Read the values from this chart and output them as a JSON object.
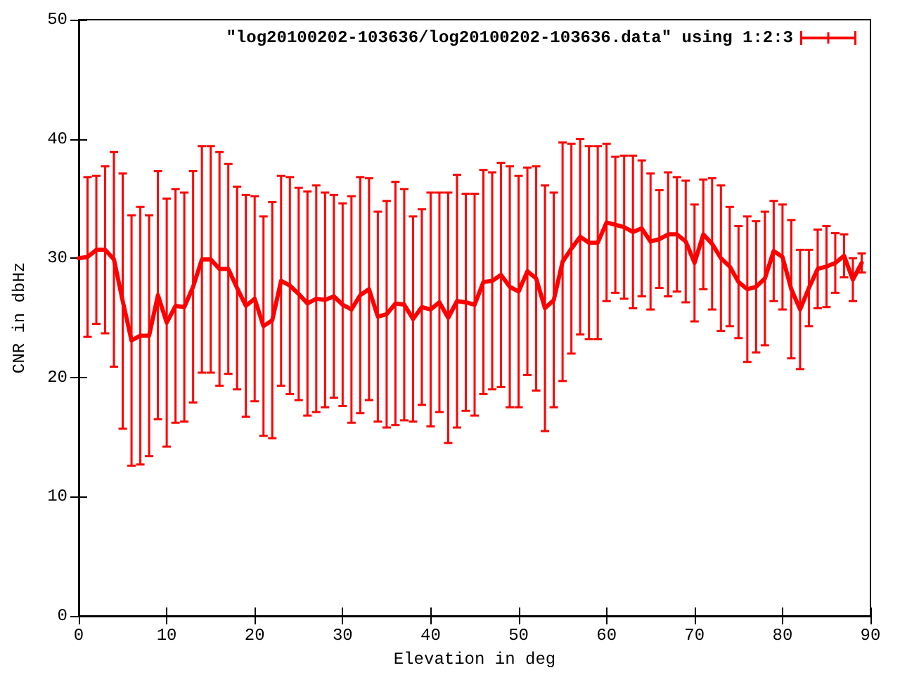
{
  "chart_data": {
    "type": "line",
    "xlabel": "Elevation in deg",
    "ylabel": "CNR in dbHz",
    "xlim": [
      0,
      90
    ],
    "xticks": [
      0,
      10,
      20,
      30,
      40,
      50,
      60,
      70,
      80,
      90
    ],
    "ylim": [
      0,
      50
    ],
    "yticks": [
      0,
      10,
      20,
      30,
      40,
      50
    ],
    "grid": false,
    "legend": "top right",
    "marker": "none",
    "line_style": "solid",
    "series": [
      {
        "name": "\"log20100202-103636/log20100202-103636.data\" using 1:2:3",
        "color": "#ff0000",
        "x": [
          0,
          1,
          2,
          3,
          4,
          5,
          6,
          7,
          8,
          9,
          10,
          11,
          12,
          13,
          14,
          15,
          16,
          17,
          18,
          19,
          20,
          21,
          22,
          23,
          24,
          25,
          26,
          27,
          28,
          29,
          30,
          31,
          32,
          33,
          34,
          35,
          36,
          37,
          38,
          39,
          40,
          41,
          42,
          43,
          44,
          45,
          46,
          47,
          48,
          49,
          50,
          51,
          52,
          53,
          54,
          55,
          56,
          57,
          58,
          59,
          60,
          61,
          62,
          63,
          64,
          65,
          66,
          67,
          68,
          69,
          70,
          71,
          72,
          73,
          74,
          75,
          76,
          77,
          78,
          79,
          80,
          81,
          82,
          83,
          84,
          85,
          86,
          87,
          88,
          89
        ],
        "values": [
          30.0,
          30.1,
          30.7,
          30.7,
          29.9,
          26.4,
          23.1,
          23.5,
          23.5,
          26.9,
          24.6,
          26.0,
          25.9,
          27.6,
          29.9,
          29.9,
          29.1,
          29.1,
          27.5,
          26.0,
          26.6,
          24.3,
          24.8,
          28.1,
          27.7,
          27.0,
          26.2,
          26.6,
          26.5,
          26.8,
          26.1,
          25.7,
          26.9,
          27.4,
          25.1,
          25.3,
          26.2,
          26.1,
          24.9,
          25.9,
          25.7,
          26.3,
          25.0,
          26.4,
          26.3,
          26.1,
          28.0,
          28.1,
          28.6,
          27.6,
          27.2,
          28.9,
          28.3,
          25.8,
          26.5,
          29.7,
          30.8,
          31.8,
          31.3,
          31.3,
          33.0,
          32.8,
          32.6,
          32.2,
          32.5,
          31.4,
          31.6,
          32.0,
          32.0,
          31.4,
          29.6,
          32.0,
          31.2,
          30.0,
          29.3,
          28.0,
          27.4,
          27.6,
          28.3,
          30.6,
          30.1,
          27.4,
          25.7,
          27.5,
          29.1,
          29.3,
          29.6,
          30.2,
          28.2,
          29.6
        ],
        "errors": [
          null,
          6.7,
          6.2,
          7.0,
          9.0,
          10.7,
          10.5,
          10.8,
          10.1,
          10.4,
          10.4,
          9.8,
          9.6,
          9.7,
          9.5,
          9.5,
          9.8,
          8.8,
          8.5,
          9.3,
          8.6,
          9.2,
          9.9,
          8.8,
          9.1,
          8.9,
          9.4,
          9.5,
          9.0,
          8.5,
          8.5,
          9.5,
          9.9,
          9.3,
          8.8,
          9.5,
          10.2,
          9.7,
          8.6,
          8.2,
          9.8,
          9.2,
          10.5,
          10.6,
          9.1,
          9.3,
          9.4,
          9.1,
          9.4,
          10.1,
          9.7,
          8.7,
          9.4,
          10.3,
          9.0,
          10.0,
          8.8,
          8.2,
          8.1,
          8.1,
          6.6,
          5.7,
          6.0,
          6.4,
          5.7,
          5.7,
          4.1,
          5.2,
          4.8,
          5.1,
          4.9,
          4.6,
          5.5,
          6.1,
          5.0,
          4.7,
          6.1,
          5.5,
          5.6,
          4.2,
          4.4,
          5.8,
          5.0,
          3.2,
          3.3,
          3.4,
          2.5,
          1.8,
          1.8,
          0.8
        ]
      }
    ]
  }
}
